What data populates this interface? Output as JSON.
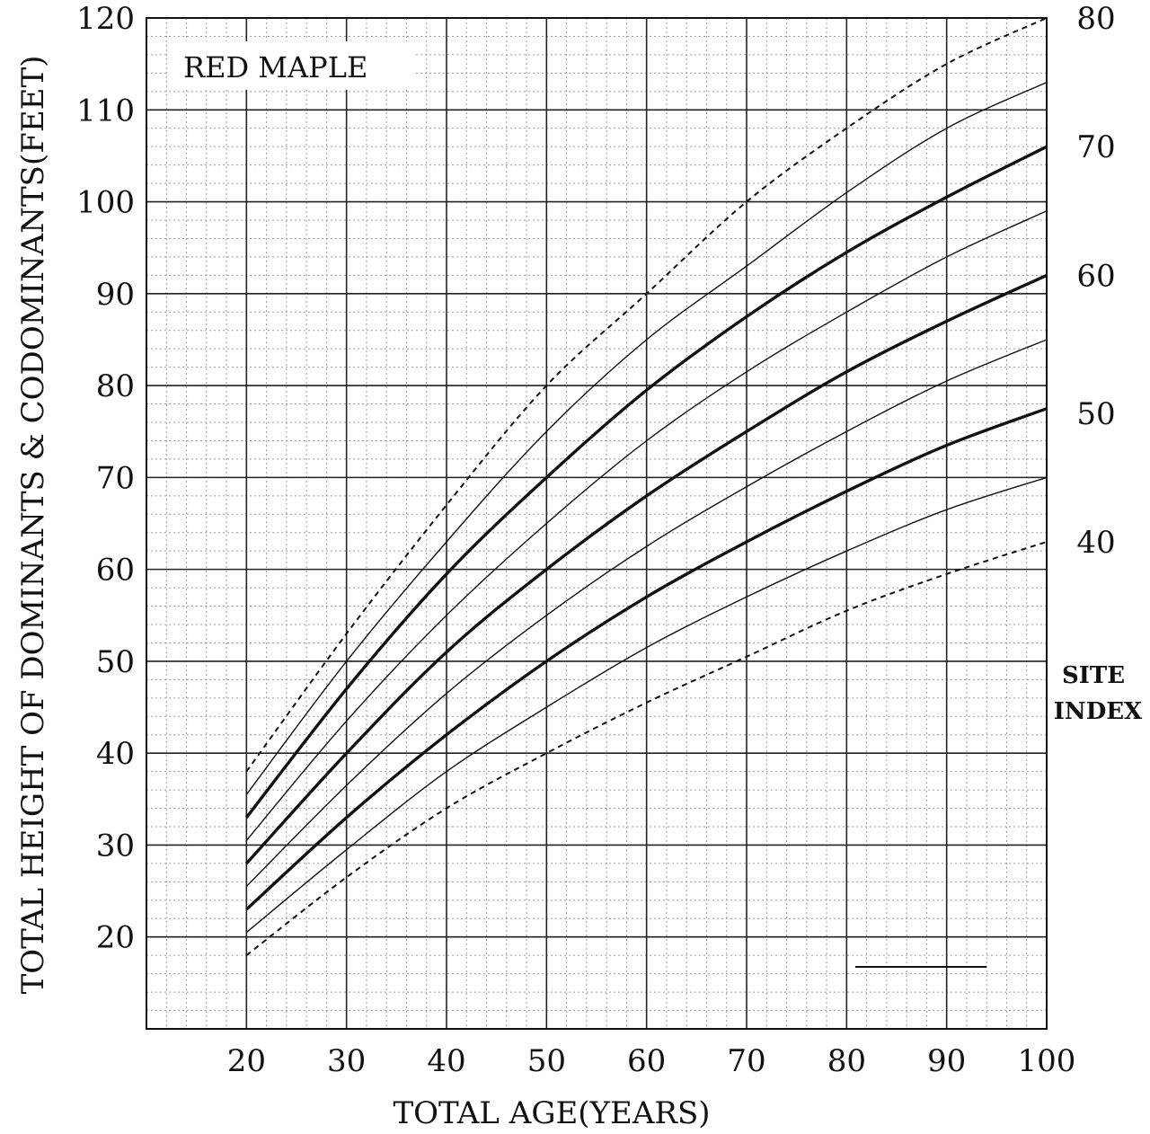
{
  "chart_data": {
    "type": "line",
    "title": "RED MAPLE",
    "xlabel": "TOTAL AGE(YEARS)",
    "ylabel": "TOTAL HEIGHT OF DOMINANTS & CODOMINANTS(FEET)",
    "right_axis_label": [
      "SITE",
      "INDEX"
    ],
    "xlim": [
      10,
      100
    ],
    "ylim": [
      10,
      120
    ],
    "xticks": [
      20,
      30,
      40,
      50,
      60,
      70,
      80,
      90,
      100
    ],
    "yticks": [
      20,
      30,
      40,
      50,
      60,
      70,
      80,
      90,
      100,
      110,
      120
    ],
    "right_ticks": [
      {
        "label": "80",
        "y": 120
      },
      {
        "label": "70",
        "y": 106
      },
      {
        "label": "60",
        "y": 92
      },
      {
        "label": "50",
        "y": 77
      },
      {
        "label": "40",
        "y": 63
      }
    ],
    "grid": true,
    "x": [
      20,
      30,
      40,
      50,
      60,
      70,
      80,
      90,
      100
    ],
    "series": [
      {
        "site_index": 80,
        "style": "dashed",
        "values": [
          38,
          53,
          67,
          80,
          90,
          100,
          108,
          115,
          120
        ]
      },
      {
        "site_index": 75,
        "style": "thin",
        "values": [
          35.5,
          50,
          63,
          75,
          85,
          93,
          101,
          108,
          113
        ]
      },
      {
        "site_index": 70,
        "style": "bold",
        "values": [
          33,
          47,
          59.5,
          70,
          79.5,
          87.5,
          94.5,
          100.5,
          106
        ]
      },
      {
        "site_index": 65,
        "style": "thin",
        "values": [
          30.5,
          43.5,
          55,
          65,
          74,
          81.5,
          88,
          94,
          99
        ]
      },
      {
        "site_index": 60,
        "style": "bold",
        "values": [
          28,
          40,
          51,
          60,
          68,
          75,
          81.5,
          87,
          92
        ]
      },
      {
        "site_index": 55,
        "style": "thin",
        "values": [
          25.5,
          36.5,
          46.5,
          55,
          62.5,
          69,
          75,
          80.5,
          85
        ]
      },
      {
        "site_index": 50,
        "style": "bold",
        "values": [
          23,
          33,
          42,
          50,
          57,
          63,
          68.5,
          73.5,
          77.5
        ]
      },
      {
        "site_index": 45,
        "style": "thin",
        "values": [
          20.5,
          29.5,
          38,
          45,
          51.5,
          57,
          62,
          66.5,
          70
        ]
      },
      {
        "site_index": 40,
        "style": "dashed",
        "values": [
          18,
          26.5,
          34,
          40,
          45.5,
          50.5,
          55.5,
          59.5,
          63
        ]
      }
    ]
  }
}
